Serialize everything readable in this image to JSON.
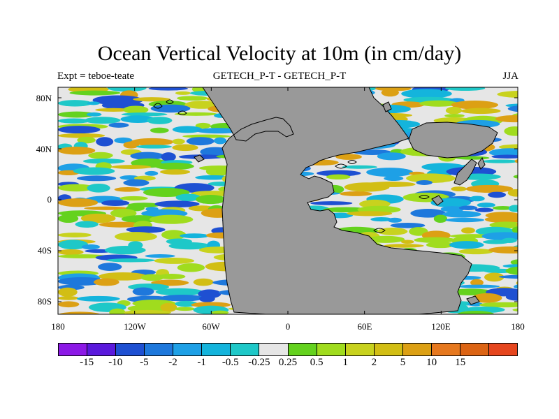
{
  "title": "Ocean Vertical Velocity at 10m (in cm/day)",
  "subtitle_left": "Expt = teboe-teate",
  "subtitle_center": "GETECH_P-T - GETECH_P-T",
  "subtitle_right": "JJA",
  "lat_labels": [
    "80N",
    "40N",
    "0",
    "40S",
    "80S"
  ],
  "lon_labels": [
    "180",
    "120W",
    "60W",
    "0",
    "60E",
    "120E",
    "180"
  ],
  "colorbar": {
    "colors": [
      "#8c19e6",
      "#5a19dc",
      "#1e50d2",
      "#1e78dc",
      "#1ea0e6",
      "#14b4dc",
      "#1ec8c8",
      "#e6e6e6",
      "#64d21e",
      "#a0dc1e",
      "#c8d21e",
      "#d2be14",
      "#dca014",
      "#e6781e",
      "#dc6414",
      "#e6461e"
    ],
    "labels": [
      "-15",
      "-10",
      "-5",
      "-2",
      "-1",
      "-0.5",
      "-0.25",
      "0.25",
      "0.5",
      "1",
      "2",
      "5",
      "10",
      "15"
    ]
  },
  "colors": {
    "land": "#999999",
    "coast": "#000000"
  }
}
